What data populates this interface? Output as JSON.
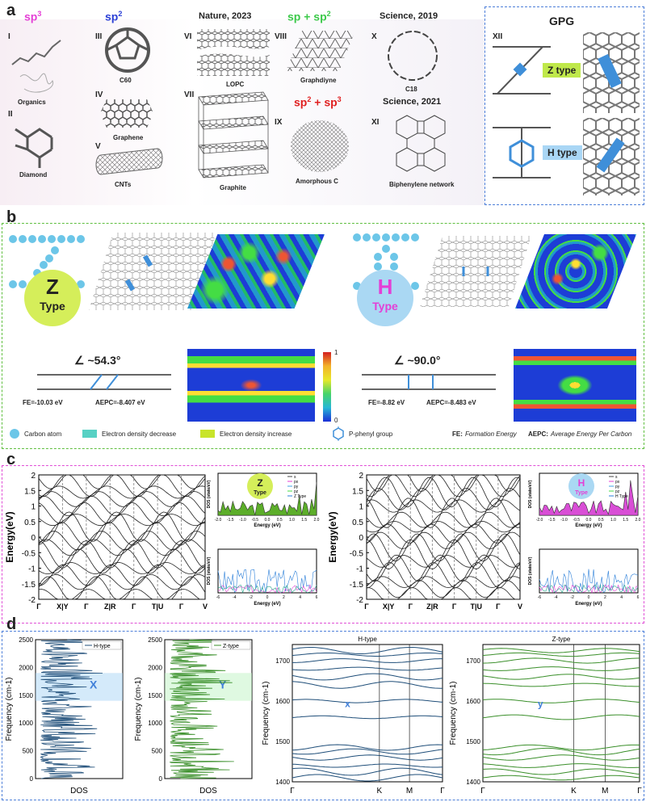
{
  "panel_a": {
    "label": "a",
    "structures": [
      {
        "roman": "I",
        "hybrid": "sp3",
        "caption": "Organics"
      },
      {
        "roman": "II",
        "caption": "Diamond"
      },
      {
        "roman": "III",
        "hybrid": "sp2",
        "caption": "C60"
      },
      {
        "roman": "IV",
        "caption": "Graphene"
      },
      {
        "roman": "V",
        "caption": "CNTs"
      },
      {
        "roman": "VI",
        "journal": "Nature, 2023",
        "caption": "LOPC"
      },
      {
        "roman": "VII",
        "caption": "Graphite"
      },
      {
        "roman": "VIII",
        "hybrid": "sp + sp2",
        "caption": "Graphdiyne"
      },
      {
        "roman": "IX",
        "hybrid": "sp2 + sp3",
        "caption": "Amorphous C"
      },
      {
        "roman": "X",
        "journal": "Science, 2019",
        "caption": "C18"
      },
      {
        "roman": "XI",
        "journal": "Science, 2021",
        "caption": "Biphenylene network"
      },
      {
        "roman": "XII",
        "caption": ""
      }
    ],
    "gpg_title": "GPG",
    "z_type": "Z type",
    "h_type": "H type",
    "colors": {
      "sp3": "#e43fd6",
      "sp2": "#2b3fd6",
      "sp_sp2": "#3cc94a",
      "sp2_sp3": "#e02020"
    }
  },
  "panel_b": {
    "label": "b",
    "z_badge": {
      "main": "Z",
      "sub": "Type"
    },
    "h_badge": {
      "main": "H",
      "sub": "Type"
    },
    "z_angle": "∠ ~54.3°",
    "h_angle": "∠ ~90.0°",
    "z_fe": "FE=-10.03 eV",
    "z_aepc": "AEPC=-8.407 eV",
    "h_fe": "FE=-8.82 eV",
    "h_aepc": "AEPC=-8.483 eV",
    "scale_max": "1",
    "scale_min": "0",
    "legend": {
      "carbon": "Carbon atom",
      "decrease": "Electron density decrease",
      "increase": "Electron density increase",
      "phenyl": "P-phenyl group",
      "fe_key": "FE:",
      "fe_text": "Formation Energy",
      "aepc_key": "AEPC:",
      "aepc_text": "Average Energy Per Carbon"
    }
  },
  "panel_c": {
    "label": "c",
    "y_label": "Energy(eV)",
    "y_ticks": [
      "2",
      "1.5",
      "1",
      "0.5",
      "0",
      "-0.5",
      "-1",
      "-1.5",
      "-2"
    ],
    "z_kpath": [
      "Γ",
      "X|Y",
      "Γ",
      "Z|R",
      "Γ",
      "T|U",
      "Γ",
      "V"
    ],
    "h_kpath": [
      "Γ",
      "X|Y",
      "Γ",
      "Z|R",
      "Γ",
      "T|U",
      "Γ",
      "V"
    ],
    "z_badge": {
      "main": "Z",
      "sub": "Type"
    },
    "h_badge": {
      "main": "H",
      "sub": "Type"
    },
    "dos_ylabel": "DOS (state/eV)",
    "dos_xlabel": "Energy (eV)",
    "z_legend": [
      "s",
      "px",
      "py",
      "pz",
      "Z Type"
    ],
    "h_legend": [
      "s",
      "px",
      "py",
      "pz",
      "H Type"
    ],
    "top_xticks": [
      "-2.0",
      "-1.5",
      "-1.0",
      "-0.5",
      "0.0",
      "0.5",
      "1.0",
      "1.5",
      "2.0"
    ],
    "bottom_xticks": [
      "-6",
      "-4",
      "-2",
      "0",
      "2",
      "4",
      "6"
    ]
  },
  "panel_d": {
    "label": "d",
    "dos_h": {
      "legend": "H-type",
      "xlabel": "DOS",
      "ylabel": "Frequency (cm-1)",
      "region_label": "X",
      "y_ticks": [
        "2500",
        "2000",
        "1500",
        "1000",
        "500",
        "0"
      ]
    },
    "dos_z": {
      "legend": "Z-type",
      "xlabel": "DOS",
      "ylabel": "Frequency (cm-1)",
      "region_label": "Y",
      "y_ticks": [
        "2500",
        "2000",
        "1500",
        "1000",
        "500",
        "0"
      ]
    },
    "band_h": {
      "title": "H-type",
      "ylabel": "Frequency (cm-1)",
      "region_label": "x",
      "y_ticks": [
        "1700",
        "1600",
        "1500",
        "1400"
      ],
      "kpath": [
        "Γ",
        "K",
        "M",
        "Γ"
      ]
    },
    "band_z": {
      "title": "Z-type",
      "ylabel": "Frequency (cm-1)",
      "region_label": "y",
      "y_ticks": [
        "1700",
        "1600",
        "1500",
        "1400"
      ],
      "kpath": [
        "Γ",
        "K",
        "M",
        "Γ"
      ]
    }
  }
}
